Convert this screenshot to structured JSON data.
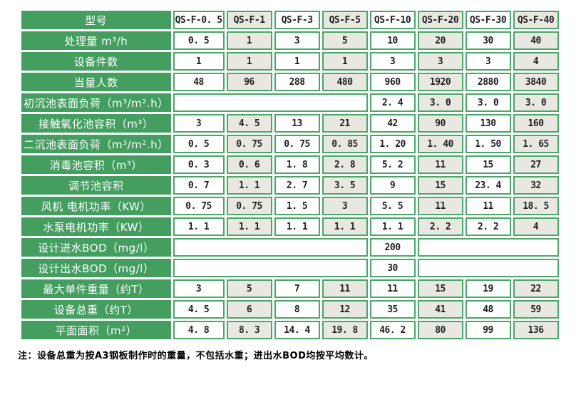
{
  "colors": {
    "label_green": "#449e60",
    "border_green": "#4aa668",
    "alt_cell_gray": "#e9e8e0",
    "cell_white": "#ffffff",
    "value_text": "#1f1f1f",
    "label_text": "#ffffff"
  },
  "table": {
    "header": {
      "label": "型号",
      "models": [
        "QS-F-0. 5",
        "QS-F-1",
        "QS-F-3",
        "QS-F-5",
        "QS-F-10",
        "QS-F-20",
        "QS-F-30",
        "QS-F-40"
      ]
    },
    "rows": [
      {
        "label": "处理量 m³/h",
        "cells": [
          "0. 5",
          "1",
          "3",
          "5",
          "10",
          "20",
          "30",
          "40"
        ]
      },
      {
        "label": "设备件数",
        "cells": [
          "1",
          "1",
          "1",
          "1",
          "3",
          "3",
          "3",
          "4"
        ]
      },
      {
        "label": "当量人数",
        "cells": [
          "48",
          "96",
          "288",
          "480",
          "960",
          "1920",
          "2880",
          "3840"
        ]
      },
      {
        "label": "初沉池表面负荷（m³/m².h）",
        "cells": [
          {
            "span": 4,
            "text": ""
          },
          "2. 4",
          "3. 0",
          "3. 0",
          "3. 0"
        ]
      },
      {
        "label": "接触氧化池容积（m³）",
        "cells": [
          "3",
          "4. 5",
          "13",
          "21",
          "42",
          "90",
          "130",
          "160"
        ]
      },
      {
        "label": "二沉池表面负荷（m³/m².h）",
        "cells": [
          "0. 5",
          "0. 75",
          "0. 75",
          "0. 85",
          "1. 20",
          "1. 40",
          "1. 50",
          "1. 65"
        ]
      },
      {
        "label": "消毒池容积（m³）",
        "cells": [
          "0. 3",
          "0. 6",
          "1. 8",
          "2. 8",
          "5. 2",
          "11",
          "15",
          "27"
        ]
      },
      {
        "label": "调节池容积",
        "cells": [
          "0. 7",
          "1. 1",
          "2. 7",
          "3. 5",
          "9",
          "15",
          "23. 4",
          "32"
        ]
      },
      {
        "label": "风机 电机功率（KW）",
        "cells": [
          "0. 75",
          "0. 75",
          "1. 5",
          "3",
          "5. 5",
          "11",
          "11",
          "18. 5"
        ]
      },
      {
        "label": "水泵电机功率（KW）",
        "cells": [
          "1. 1",
          "1. 1",
          "1. 1",
          "1. 1",
          "1. 1",
          "2. 2",
          "2. 2",
          "4"
        ]
      },
      {
        "label": "设计进水BOD（mg/l）",
        "cells": [
          {
            "span": 4,
            "text": ""
          },
          "200",
          {
            "span": 3,
            "text": ""
          }
        ]
      },
      {
        "label": "设计出水BOD（mg/l）",
        "cells": [
          {
            "span": 4,
            "text": ""
          },
          "30",
          {
            "span": 3,
            "text": ""
          }
        ]
      },
      {
        "label": "最大单件重量（约T）",
        "cells": [
          "3",
          "5",
          "7",
          "11",
          "11",
          "15",
          "19",
          "22"
        ]
      },
      {
        "label": "设备总重（约T）",
        "cells": [
          "4. 5",
          "6",
          "8",
          "12",
          "35",
          "41",
          "48",
          "59"
        ]
      },
      {
        "label": "平面面积（m²）",
        "cells": [
          "4. 8",
          "8. 3",
          "14. 4",
          "19. 8",
          "46. 2",
          "80",
          "99",
          "136"
        ]
      }
    ],
    "footnote": "注：设备总重为按A3钢板制作时的重量，不包括水重；进出水BOD均按平均数计。"
  }
}
